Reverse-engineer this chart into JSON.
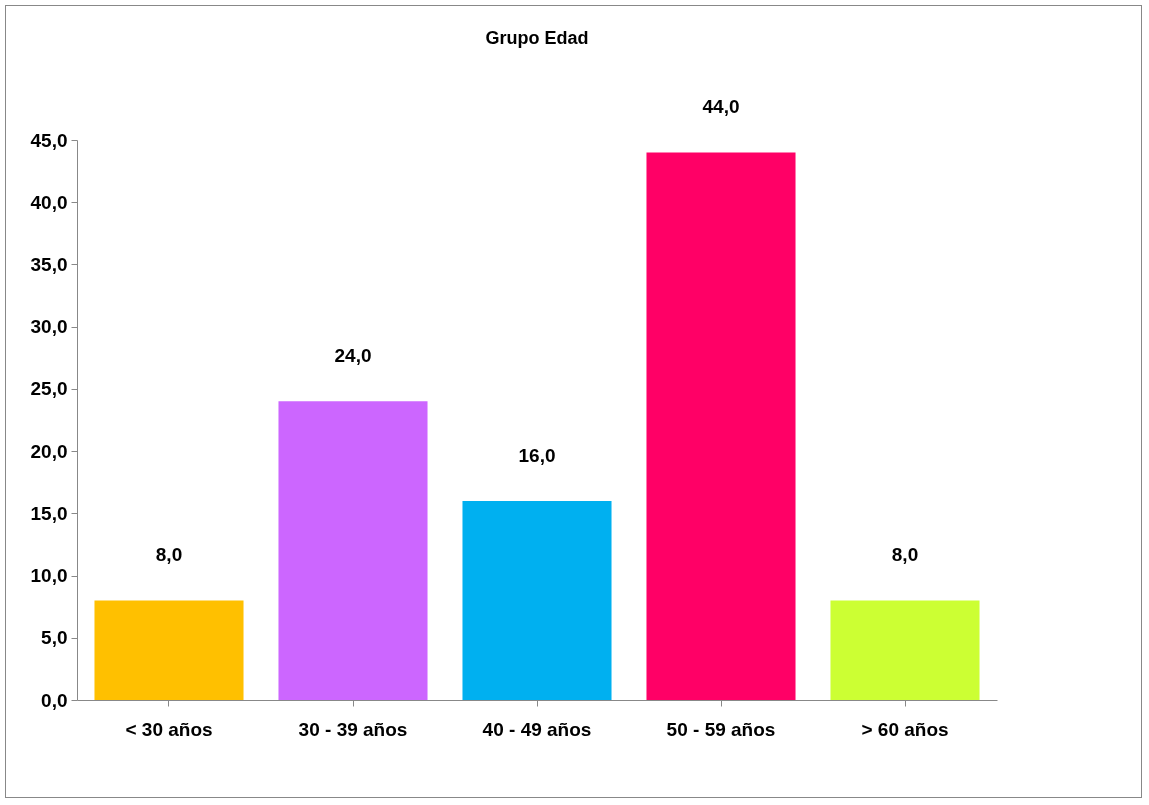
{
  "chart_data": {
    "type": "bar",
    "title": "Grupo Edad",
    "categories": [
      "<  30 años",
      "30 - 39 años",
      "40 - 49 años",
      "50 - 59 años",
      ">  60 años"
    ],
    "values": [
      8,
      24,
      16,
      44,
      8
    ],
    "colors": [
      "#ffc000",
      "#cc66ff",
      "#00b0f0",
      "#ff0066",
      "#ccff33"
    ],
    "value_labels": [
      "8,0",
      "24,0",
      "16,0",
      "44,0",
      "8,0"
    ],
    "ylim": [
      0,
      45
    ],
    "yticks": [
      {
        "value": 0,
        "label": "0,0"
      },
      {
        "value": 5,
        "label": "5,0"
      },
      {
        "value": 10,
        "label": "10,0"
      },
      {
        "value": 15,
        "label": "15,0"
      },
      {
        "value": 20,
        "label": "20,0"
      },
      {
        "value": 25,
        "label": "25,0"
      },
      {
        "value": 30,
        "label": "30,0"
      },
      {
        "value": 35,
        "label": "35,0"
      },
      {
        "value": 40,
        "label": "40,0"
      },
      {
        "value": 45,
        "label": "45,0"
      }
    ],
    "grid": false
  }
}
